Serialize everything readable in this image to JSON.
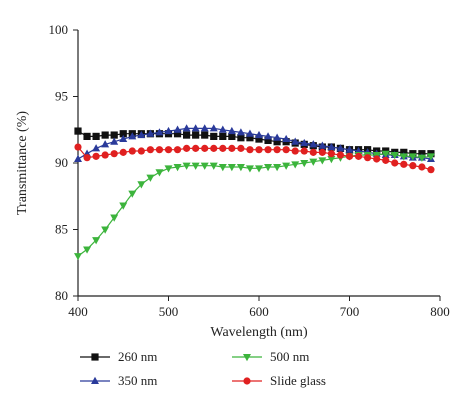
{
  "chart_data": {
    "type": "line",
    "title": "",
    "xlabel": "Wavelength (nm)",
    "ylabel": "Transmittance (%)",
    "xlim": [
      400,
      800
    ],
    "ylim": [
      80,
      100
    ],
    "x_ticks": [
      400,
      500,
      600,
      700,
      800
    ],
    "y_ticks": [
      80,
      85,
      90,
      95,
      100
    ],
    "grid": false,
    "legend_position": "bottom",
    "x": [
      400,
      410,
      420,
      430,
      440,
      450,
      460,
      470,
      480,
      490,
      500,
      510,
      520,
      530,
      540,
      550,
      560,
      570,
      580,
      590,
      600,
      610,
      620,
      630,
      640,
      650,
      660,
      670,
      680,
      690,
      700,
      710,
      720,
      730,
      740,
      750,
      760,
      770,
      780,
      790
    ],
    "series": [
      {
        "name": "260 nm",
        "color": "#111111",
        "marker": "square",
        "values": [
          92.4,
          92.0,
          92.0,
          92.1,
          92.1,
          92.2,
          92.2,
          92.2,
          92.2,
          92.2,
          92.2,
          92.2,
          92.1,
          92.1,
          92.1,
          92.0,
          92.0,
          92.0,
          91.9,
          91.9,
          91.8,
          91.7,
          91.6,
          91.6,
          91.5,
          91.4,
          91.3,
          91.2,
          91.2,
          91.1,
          91.0,
          91.0,
          91.0,
          90.9,
          90.9,
          90.8,
          90.8,
          90.7,
          90.7,
          90.7
        ]
      },
      {
        "name": "350 nm",
        "color": "#2a3a9a",
        "marker": "triangle-up",
        "values": [
          90.3,
          90.7,
          91.1,
          91.4,
          91.6,
          91.8,
          92.0,
          92.1,
          92.2,
          92.3,
          92.4,
          92.5,
          92.6,
          92.6,
          92.6,
          92.6,
          92.5,
          92.4,
          92.3,
          92.2,
          92.1,
          92.0,
          91.9,
          91.8,
          91.6,
          91.5,
          91.4,
          91.3,
          91.2,
          91.1,
          91.0,
          90.9,
          90.8,
          90.7,
          90.6,
          90.6,
          90.5,
          90.4,
          90.4,
          90.3
        ]
      },
      {
        "name": "500 nm",
        "color": "#3cb43c",
        "marker": "triangle-down",
        "values": [
          83.0,
          83.5,
          84.2,
          85.0,
          85.9,
          86.8,
          87.7,
          88.4,
          88.9,
          89.3,
          89.6,
          89.7,
          89.8,
          89.8,
          89.8,
          89.8,
          89.7,
          89.7,
          89.7,
          89.6,
          89.6,
          89.7,
          89.7,
          89.8,
          89.9,
          90.0,
          90.1,
          90.2,
          90.3,
          90.4,
          90.5,
          90.6,
          90.6,
          90.6,
          90.7,
          90.6,
          90.5,
          90.5,
          90.4,
          90.5
        ]
      },
      {
        "name": "Slide glass",
        "color": "#e02020",
        "marker": "circle",
        "values": [
          91.2,
          90.4,
          90.5,
          90.6,
          90.7,
          90.8,
          90.9,
          90.9,
          91.0,
          91.0,
          91.0,
          91.0,
          91.1,
          91.1,
          91.1,
          91.1,
          91.1,
          91.1,
          91.1,
          91.0,
          91.0,
          91.0,
          91.0,
          91.0,
          90.9,
          90.9,
          90.8,
          90.8,
          90.7,
          90.6,
          90.5,
          90.5,
          90.4,
          90.3,
          90.2,
          90.0,
          89.9,
          89.8,
          89.7,
          89.5
        ]
      }
    ]
  }
}
